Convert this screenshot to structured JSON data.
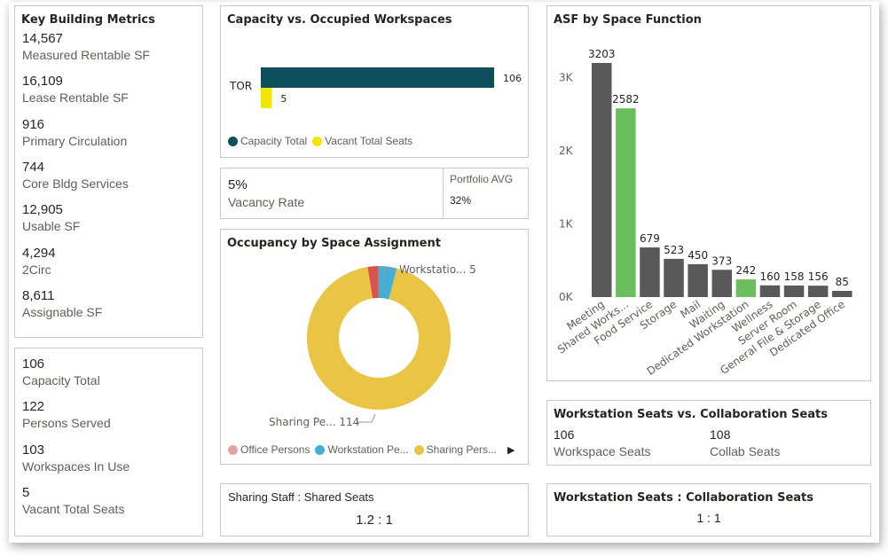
{
  "key_metrics": {
    "title": "Key Building Metrics",
    "items": [
      {
        "value": "14,567",
        "label": "Measured Rentable SF"
      },
      {
        "value": "16,109",
        "label": "Lease Rentable SF"
      },
      {
        "value": "916",
        "label": "Primary Circulation"
      },
      {
        "value": "744",
        "label": "Core Bldg Services"
      },
      {
        "value": "12,905",
        "label": "Usable SF"
      },
      {
        "value": "4,294",
        "label": "2Circ"
      },
      {
        "value": "8,611",
        "label": "Assignable SF"
      }
    ]
  },
  "capacity_metrics": {
    "items": [
      {
        "value": "106",
        "label": "Capacity Total"
      },
      {
        "value": "122",
        "label": "Persons Served"
      },
      {
        "value": "103",
        "label": "Workspaces In Use"
      },
      {
        "value": "5",
        "label": "Vacant Total Seats"
      }
    ]
  },
  "capacity_chart": {
    "title": "Capacity vs. Occupied Workspaces",
    "category": "TOR",
    "legend": [
      {
        "label": "Capacity Total",
        "color": "#0e4f5c"
      },
      {
        "label": "Vacant Total Seats",
        "color": "#f2e500"
      }
    ]
  },
  "vacancy": {
    "value": "5%",
    "label": "Vacancy Rate",
    "portfolio_label": "Portfolio AVG",
    "portfolio_value": "32%"
  },
  "occupancy_chart": {
    "title": "Occupancy by Space Assignment",
    "label_workstation": "Workstatio... 5",
    "label_sharing": "Sharing Pe... 114",
    "legend": [
      {
        "label": "Office Persons",
        "color": "#e8a0a0"
      },
      {
        "label": "Workstation Pe...",
        "color": "#45aed3"
      },
      {
        "label": "Sharing Pers...",
        "color": "#eac545"
      }
    ],
    "legend_more": "▶"
  },
  "sharing_ratio": {
    "label": "Sharing Staff : Shared Seats",
    "value": "1.2 : 1"
  },
  "asf_chart": {
    "title": "ASF by Space Function",
    "y_ticks": [
      "0K",
      "1K",
      "2K",
      "3K"
    ]
  },
  "seats_compare": {
    "title": "Workstation Seats  vs.  Collaboration Seats",
    "left_value": "106",
    "left_label": "Workspace Seats",
    "right_value": "108",
    "right_label": "Collab Seats"
  },
  "seats_ratio": {
    "title": "Workstation Seats : Collaboration Seats",
    "value": "1 : 1"
  },
  "chart_data": [
    {
      "type": "bar",
      "title": "Capacity vs. Occupied Workspaces",
      "orientation": "horizontal",
      "categories": [
        "TOR"
      ],
      "series": [
        {
          "name": "Capacity Total",
          "values": [
            106
          ],
          "color": "#0e4f5c"
        },
        {
          "name": "Vacant Total Seats",
          "values": [
            5
          ],
          "color": "#f2e500"
        }
      ],
      "xlim": [
        0,
        106
      ],
      "legend": "bottom-left"
    },
    {
      "type": "pie",
      "title": "Occupancy by Space Assignment",
      "donut": true,
      "slices": [
        {
          "name": "Office Persons",
          "value": 3,
          "color": "#d9534f"
        },
        {
          "name": "Workstation Pe...",
          "value": 5,
          "color": "#45aed3"
        },
        {
          "name": "Sharing Pers...",
          "value": 114,
          "color": "#eac545"
        }
      ],
      "legend": "bottom"
    },
    {
      "type": "bar",
      "title": "ASF by Space Function",
      "categories": [
        "Meeting",
        "Shared Works...",
        "Food Service",
        "Storage",
        "Mail",
        "Waiting",
        "Dedicated Workstation",
        "Wellness",
        "Server Room",
        "General File & Storage",
        "Dedicated Office"
      ],
      "values": [
        3203,
        2582,
        679,
        523,
        450,
        373,
        242,
        160,
        158,
        156,
        85
      ],
      "colors": [
        "#595959",
        "#6cbd5e",
        "#595959",
        "#595959",
        "#595959",
        "#595959",
        "#6cbd5e",
        "#595959",
        "#595959",
        "#595959",
        "#595959"
      ],
      "ylim": [
        0,
        3300
      ],
      "yticks": [
        0,
        1000,
        2000,
        3000
      ],
      "grid": false
    }
  ]
}
